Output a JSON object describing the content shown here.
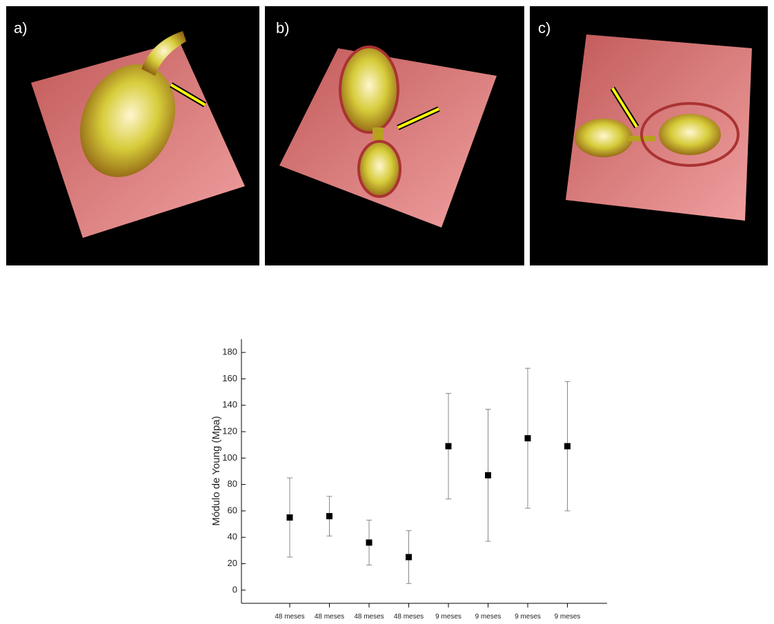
{
  "panels": [
    "a)",
    "b)",
    "c)"
  ],
  "chart_data": {
    "type": "scatter",
    "y_label": "Módulo de Young (Mpa)",
    "categories": [
      "48 meses",
      "48 meses",
      "48 meses",
      "48 meses",
      "9 meses",
      "9 meses",
      "9 meses",
      "9 meses"
    ],
    "values": [
      55,
      56,
      36,
      25,
      109,
      87,
      115,
      109
    ],
    "errors": [
      30,
      15,
      17,
      20,
      40,
      50,
      53,
      49
    ],
    "color": "#000000",
    "ylim": [
      -10,
      190
    ],
    "yticks": [
      0,
      20,
      40,
      60,
      80,
      100,
      120,
      140,
      160,
      180
    ]
  }
}
